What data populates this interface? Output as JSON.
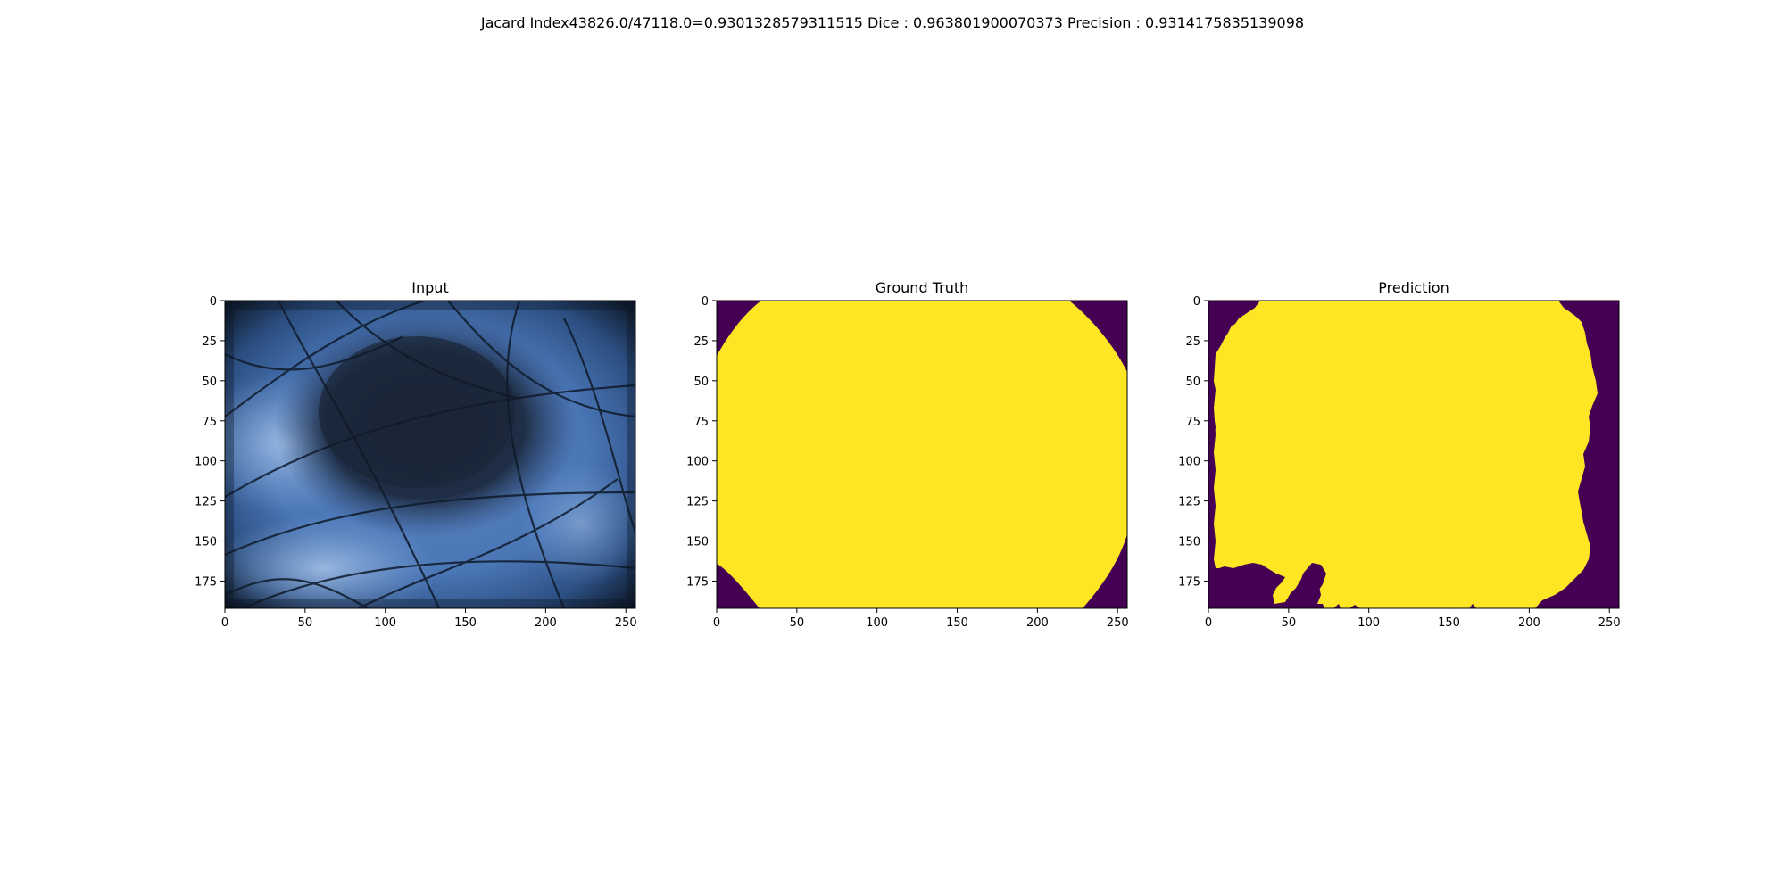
{
  "figure": {
    "suptitle": "Jacard Index43826.0/47118.0=0.9301328579311515 Dice : 0.963801900070373 Precision : 0.9314175835139098"
  },
  "colors": {
    "mask_foreground": "#fde725",
    "mask_background": "#440154",
    "input_skin_light": "#7ea6d8",
    "input_skin_mid": "#3f6aa8",
    "input_lesion": "#1c2a3e",
    "input_vignette": "#0b1522",
    "hair": "#0f1a2a"
  },
  "chart_data": [
    {
      "type": "image",
      "title": "Input",
      "content": "dermoscopy image of a dark lesion on blue-tinted skin with hairs",
      "x_ticks": [
        0,
        50,
        100,
        150,
        200,
        250
      ],
      "y_ticks": [
        0,
        25,
        50,
        75,
        100,
        125,
        150,
        175
      ],
      "xlim": [
        0,
        256
      ],
      "ylim": [
        192,
        0
      ]
    },
    {
      "type": "image",
      "title": "Ground Truth",
      "content": "binary segmentation mask",
      "x_ticks": [
        0,
        50,
        100,
        150,
        200,
        250
      ],
      "y_ticks": [
        0,
        25,
        50,
        75,
        100,
        125,
        150,
        175
      ],
      "xlim": [
        0,
        256
      ],
      "ylim": [
        192,
        0
      ],
      "mask_boundary": {
        "top_row": [
          [
            28,
            0
          ],
          [
            220,
            0
          ]
        ],
        "left_col": [
          [
            0,
            35
          ],
          [
            0,
            165
          ]
        ],
        "right_col": [
          [
            256,
            45
          ],
          [
            256,
            145
          ]
        ],
        "bottom_row": [
          [
            27,
            192
          ],
          [
            228,
            192
          ]
        ]
      }
    },
    {
      "type": "image",
      "title": "Prediction",
      "content": "binary segmentation mask",
      "x_ticks": [
        0,
        50,
        100,
        150,
        200,
        250
      ],
      "y_ticks": [
        0,
        25,
        50,
        75,
        100,
        125,
        150,
        175
      ],
      "xlim": [
        0,
        256
      ],
      "ylim": [
        192,
        0
      ]
    }
  ]
}
